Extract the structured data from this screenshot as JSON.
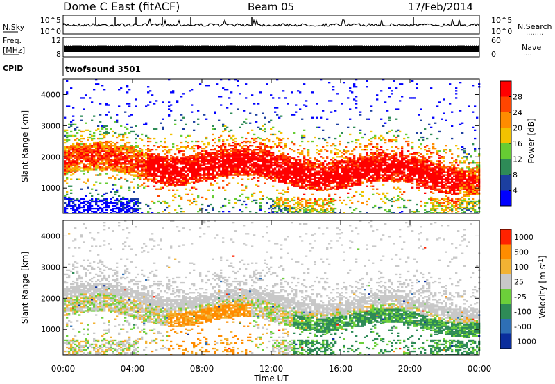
{
  "header": {
    "station": "Dome C East (fitACF)",
    "beam": "Beam 05",
    "date": "17/Feb/2014"
  },
  "side_labels": {
    "nsky": "N.Sky",
    "freq_line1": "Freq.",
    "freq_line2": "[MHz]",
    "cpid": "CPID",
    "nsearch": "N.Search",
    "nave": "Nave",
    "nsearch_dots": "........",
    "nave_dots": "...."
  },
  "noise_panel": {
    "left_ticks": [
      "10^5",
      "10^0"
    ],
    "right_ticks": [
      "10^5",
      "10^0"
    ]
  },
  "freq_panel": {
    "left_ticks": [
      "12",
      "8"
    ],
    "right_ticks": [
      "60",
      "0"
    ]
  },
  "cpid_panel": {
    "label": "twofsound 3501"
  },
  "chart_data": [
    {
      "type": "heatmap",
      "name": "power",
      "ylabel": "Slant Range [km]",
      "ylim": [
        180,
        4500
      ],
      "yticks": [
        "1000",
        "2000",
        "3000",
        "4000"
      ],
      "colorbar_label": "Power [dB]",
      "colorbar_ticks": [
        "4",
        "8",
        "12",
        "16",
        "20",
        "24",
        "28"
      ],
      "colorbar_colors": [
        "#0000ff",
        "#1c3fa0",
        "#2e8b57",
        "#66cc33",
        "#f2c200",
        "#ff8c00",
        "#ff4500",
        "#ff0000"
      ]
    },
    {
      "type": "heatmap",
      "name": "velocity",
      "ylabel": "Slant Range [km]",
      "ylim": [
        180,
        4500
      ],
      "yticks": [
        "1000",
        "2000",
        "3000",
        "4000"
      ],
      "colorbar_label": "Velocity [m s^-1]",
      "colorbar_ticks": [
        "1000",
        "500",
        "100",
        "25",
        "-25",
        "-100",
        "-500",
        "-1000"
      ],
      "colorbar_colors": [
        "#0a2d9c",
        "#2e6fb5",
        "#2e8b57",
        "#6ccf3a",
        "#c8c8c8",
        "#f2b233",
        "#ff8c00",
        "#ff2200"
      ]
    }
  ],
  "time_axis": {
    "ticks": [
      "00:00",
      "04:00",
      "08:00",
      "12:00",
      "16:00",
      "20:00",
      "00:00"
    ],
    "label": "Time UT"
  }
}
